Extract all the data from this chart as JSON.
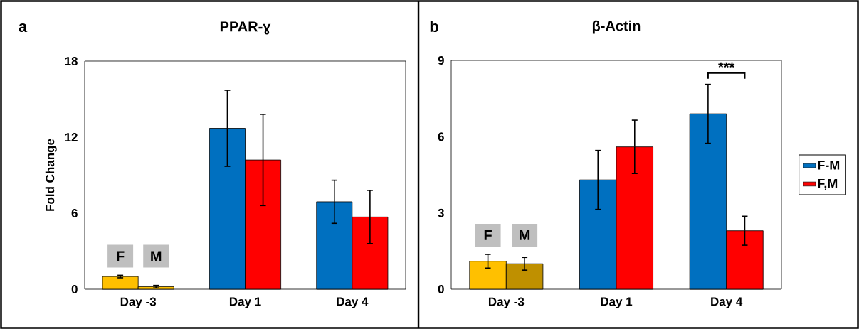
{
  "chart_data": [
    {
      "type": "bar",
      "title": "PPAR-ɣ",
      "ylabel": "Fold Change",
      "categories": [
        "Day -3",
        "Day 1",
        "Day 4"
      ],
      "series": [
        {
          "color": "#0070c0",
          "colors": [
            "#ffc000",
            "#0070c0",
            "#0070c0"
          ],
          "values": [
            1.0,
            12.7,
            6.9
          ],
          "errors": [
            0.1,
            3.0,
            1.7
          ]
        },
        {
          "color": "#ff0000",
          "colors": [
            "#ffc000",
            "#ff0000",
            "#ff0000"
          ],
          "values": [
            0.2,
            10.2,
            5.7
          ],
          "errors": [
            0.1,
            3.6,
            2.1
          ]
        }
      ],
      "ylim": [
        0,
        18
      ],
      "yticks": [
        0,
        6,
        12,
        18
      ],
      "grid": false,
      "annotations": [
        "a",
        "F",
        "M"
      ]
    },
    {
      "type": "bar",
      "title": "β-Actin",
      "categories": [
        "Day -3",
        "Day 1",
        "Day 4"
      ],
      "series": [
        {
          "name": "F-M",
          "color": "#0070c0",
          "colors": [
            "#ffc000",
            "#0070c0",
            "#0070c0"
          ],
          "values": [
            1.1,
            4.3,
            6.9
          ],
          "errors": [
            0.27,
            1.16,
            1.16
          ]
        },
        {
          "name": "F,M",
          "color": "#ff0000",
          "colors": [
            "#bf9000",
            "#ff0000",
            "#ff0000"
          ],
          "values": [
            1.0,
            5.6,
            2.3
          ],
          "errors": [
            0.25,
            1.05,
            0.57
          ]
        }
      ],
      "ylim": [
        0,
        9
      ],
      "yticks": [
        0,
        3,
        6,
        9
      ],
      "grid": false,
      "legend": "right",
      "annotations": [
        "b",
        "F",
        "M",
        "***"
      ]
    }
  ]
}
